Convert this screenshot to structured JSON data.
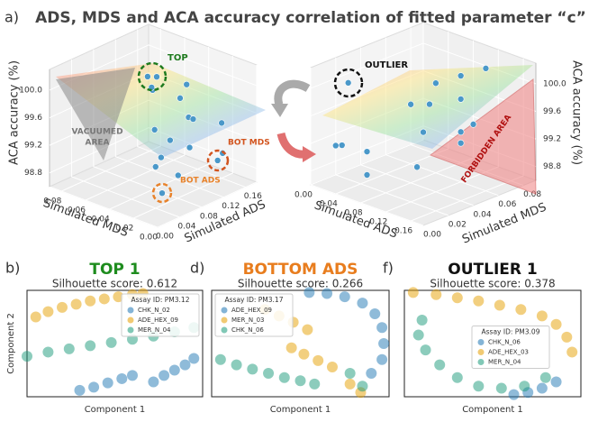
{
  "figure": {
    "label": "a)",
    "title": "ADS, MDS and ACA accuracy correlation of fitted parameter “c”"
  },
  "chart_data": [
    {
      "type": "scatter3d",
      "color": "#4a98c9",
      "xlabel": "Simulated ADS",
      "ylabel": "Simulated MDS",
      "zlabel": "ACA accuracy (%)",
      "x": [
        0.08,
        0.09,
        0.1,
        0.12,
        0.14,
        0.06,
        0.1,
        0.13,
        0.15,
        0.08,
        0.16,
        0.05,
        0.11,
        0.14,
        0.12,
        0.03,
        0.04,
        0.07
      ],
      "y": [
        0.045,
        0.042,
        0.05,
        0.06,
        0.04,
        0.03,
        0.02,
        0.03,
        0.05,
        0.01,
        0.02,
        0.02,
        0.04,
        0.01,
        0.005,
        0.01,
        0.02,
        0.015
      ],
      "z": [
        100.2,
        100.18,
        99.9,
        99.8,
        99.9,
        99.6,
        99.7,
        99.5,
        99.6,
        99.4,
        99.4,
        99.3,
        99.2,
        99.1,
        99.1,
        98.92,
        99.2,
        99.0
      ],
      "xlim": [
        0,
        0.18
      ],
      "ylim": [
        0,
        0.09
      ],
      "zlim": [
        98.6,
        100.3
      ],
      "xticks": [
        {
          "value": 0,
          "label": "0.00"
        },
        0.04,
        0.08,
        0.12,
        0.16
      ],
      "yticks": [
        {
          "value": 0,
          "label": "0.00"
        },
        0.02,
        0.04,
        0.06,
        0.08
      ],
      "zticks": [
        98.8,
        99.2,
        99.6,
        {
          "value": 100,
          "label": "100.0"
        }
      ],
      "annotations": [
        "TOP",
        "VACUUMED",
        "AREA",
        "BOT MDS",
        "BOT ADS"
      ]
    },
    {
      "type": "scatter3d",
      "color": "#4a98c9",
      "xlabel": "Simulated ADS",
      "ylabel": "Simulated MDS",
      "zlabel": "ACA accuracy (%)",
      "x": [
        0.02,
        0.08,
        0.1,
        0.12,
        0.06,
        0.09,
        0.12,
        0.14,
        0.03,
        0.05,
        0.1,
        0.14,
        0.07,
        0.11,
        0.04,
        0.16
      ],
      "y": [
        0.02,
        0.06,
        0.07,
        0.08,
        0.05,
        0.05,
        0.06,
        0.06,
        0.01,
        0.02,
        0.04,
        0.05,
        0.01,
        0.03,
        0.0,
        0.04
      ],
      "z": [
        100.0,
        99.9,
        100.0,
        100.1,
        99.6,
        99.7,
        99.8,
        99.5,
        99.2,
        99.1,
        99.4,
        99.3,
        98.9,
        99.0,
        99.3,
        99.6
      ],
      "xlim": [
        0,
        0.18
      ],
      "ylim": [
        0,
        0.09
      ],
      "zlim": [
        98.6,
        100.3
      ],
      "xticks": [
        {
          "value": 0,
          "label": "0.00"
        },
        0.04,
        0.08,
        0.12,
        0.16
      ],
      "yticks": [
        {
          "value": 0,
          "label": "0.00"
        },
        0.02,
        0.04,
        0.06,
        0.08
      ],
      "zticks": [
        98.8,
        99.2,
        99.6,
        {
          "value": 100,
          "label": "100.0"
        }
      ],
      "annotations": [
        "OUTLIER",
        "FORBIDDEN AREA"
      ]
    },
    {
      "type": "scatter",
      "label": "b)",
      "title": "TOP 1",
      "title_color": "#1e8c1e",
      "subtitle": "Silhouette score: 0.612",
      "xlabel": "Component 1",
      "ylabel": "Component 2",
      "legend_title": "Assay ID: PM3.12",
      "legend": "upper right",
      "xlim": [
        0,
        100
      ],
      "ylim": [
        0,
        100
      ],
      "series": [
        {
          "name": "CHK_N_02",
          "color": "#1f77b4",
          "x": [
            30,
            38,
            46,
            54,
            60,
            72,
            78,
            84,
            90,
            95
          ],
          "y": [
            6,
            9,
            13,
            17,
            20,
            14,
            20,
            25,
            30,
            36
          ]
        },
        {
          "name": "ADE_HEX_09",
          "color": "#e69f00",
          "x": [
            5,
            12,
            20,
            28,
            36,
            44,
            52,
            60,
            66
          ],
          "y": [
            75,
            80,
            84,
            87,
            90,
            92,
            94,
            96,
            97
          ]
        },
        {
          "name": "MER_N_04",
          "color": "#1a9a7a",
          "x": [
            0,
            12,
            24,
            36,
            48,
            60,
            72,
            84,
            95
          ],
          "y": [
            38,
            42,
            45,
            48,
            51,
            54,
            57,
            61,
            65
          ]
        }
      ]
    },
    {
      "type": "scatter",
      "label": "d)",
      "title": "BOTTOM ADS",
      "title_color": "#e87d1e",
      "subtitle": "Silhouette score: 0.266",
      "xlabel": "Component 1",
      "legend_title": "Assay ID: PM3.17",
      "legend": "upper left",
      "xlim": [
        0,
        100
      ],
      "ylim": [
        0,
        100
      ],
      "series": [
        {
          "name": "ADE_HEX_09",
          "color": "#1f77b4",
          "x": [
            55,
            65,
            75,
            85,
            92,
            96,
            97,
            96,
            90
          ],
          "y": [
            98,
            97,
            94,
            88,
            78,
            65,
            50,
            35,
            22
          ]
        },
        {
          "name": "MER_N_03",
          "color": "#e69f00",
          "x": [
            30,
            38,
            46,
            54,
            45,
            52,
            60,
            68,
            78,
            84
          ],
          "y": [
            82,
            76,
            70,
            63,
            46,
            40,
            34,
            28,
            12,
            4
          ]
        },
        {
          "name": "CHK_N_06",
          "color": "#1a9a7a",
          "x": [
            5,
            14,
            23,
            32,
            41,
            50,
            58,
            78,
            85
          ],
          "y": [
            35,
            30,
            26,
            22,
            18,
            15,
            12,
            22,
            10
          ]
        }
      ]
    },
    {
      "type": "scatter",
      "label": "f)",
      "title": "OUTLIER 1",
      "title_color": "#111111",
      "subtitle": "Silhouette score: 0.378",
      "xlabel": "Component 1",
      "legend_title": "Assay ID: PM3.09",
      "legend": "center",
      "xlim": [
        0,
        100
      ],
      "ylim": [
        0,
        100
      ],
      "series": [
        {
          "name": "CHK_N_06",
          "color": "#1f77b4",
          "x": [
            62,
            70,
            78,
            86
          ],
          "y": [
            2,
            4,
            8,
            14
          ]
        },
        {
          "name": "ADE_HEX_03",
          "color": "#e69f00",
          "x": [
            5,
            18,
            30,
            42,
            54,
            66,
            78,
            86,
            92,
            95
          ],
          "y": [
            98,
            96,
            93,
            90,
            86,
            82,
            76,
            68,
            56,
            42
          ]
        },
        {
          "name": "MER_N_04",
          "color": "#1a9a7a",
          "x": [
            10,
            8,
            12,
            20,
            30,
            42,
            55,
            68,
            80
          ],
          "y": [
            72,
            58,
            44,
            30,
            18,
            10,
            8,
            10,
            18
          ]
        }
      ]
    }
  ]
}
